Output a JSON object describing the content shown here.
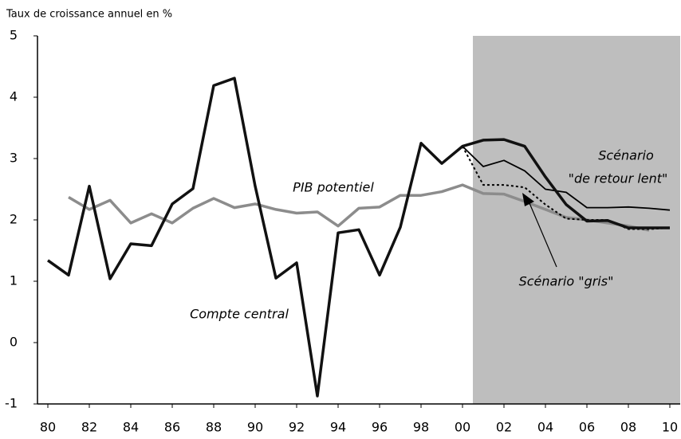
{
  "chart_data": {
    "type": "line",
    "title": "Taux de croissance annuel en %",
    "x": [
      1980,
      1981,
      1982,
      1983,
      1984,
      1985,
      1986,
      1987,
      1988,
      1989,
      1990,
      1991,
      1992,
      1993,
      1994,
      1995,
      1996,
      1997,
      1998,
      1999,
      2000,
      2001,
      2002,
      2003,
      2004,
      2005,
      2006,
      2007,
      2008,
      2009,
      2010
    ],
    "series": [
      {
        "name": "PIB potentiel",
        "color": "#8c8c8c",
        "values": [
          null,
          2.37,
          2.17,
          2.32,
          1.95,
          2.1,
          1.95,
          2.19,
          2.35,
          2.2,
          2.26,
          2.17,
          2.11,
          2.13,
          1.9,
          2.19,
          2.21,
          2.4,
          2.4,
          2.46,
          2.57,
          2.43,
          2.42,
          2.3,
          2.17,
          2.04,
          2.0,
          1.95,
          1.9,
          1.83,
          null
        ]
      },
      {
        "name": "Scénario \"gris\"",
        "color": "#000000",
        "style": "dotted",
        "values": [
          null,
          null,
          null,
          null,
          null,
          null,
          null,
          null,
          null,
          null,
          null,
          null,
          null,
          null,
          null,
          null,
          null,
          null,
          null,
          null,
          3.2,
          2.57,
          2.57,
          2.53,
          2.25,
          2.02,
          2.0,
          2.0,
          1.85,
          1.85,
          1.87
        ]
      },
      {
        "name": "Scénario \"de retour lent\"",
        "color": "#000000",
        "style": "thin",
        "values": [
          null,
          null,
          null,
          null,
          null,
          null,
          null,
          null,
          null,
          null,
          null,
          null,
          null,
          null,
          null,
          null,
          null,
          null,
          null,
          null,
          3.2,
          2.87,
          2.97,
          2.8,
          2.5,
          2.45,
          2.2,
          2.2,
          2.21,
          2.19,
          2.16
        ]
      },
      {
        "name": "Compte central",
        "color": "#111111",
        "values": [
          1.34,
          1.1,
          2.55,
          1.04,
          1.61,
          1.58,
          2.26,
          2.51,
          4.19,
          4.31,
          2.55,
          1.05,
          1.3,
          -0.87,
          1.79,
          1.84,
          1.1,
          1.88,
          3.25,
          2.92,
          3.2,
          3.3,
          3.31,
          3.2,
          2.7,
          2.25,
          1.98,
          1.99,
          1.87,
          1.87,
          1.87
        ]
      }
    ],
    "annotations": [
      "PIB potentiel",
      "Compte central",
      "Scénario",
      "\"de retour lent\"",
      "Scénario \"gris\""
    ],
    "shaded_region": [
      2000.5,
      2010.5
    ],
    "shade_color": "#bebebe",
    "xlim": [
      1979.5,
      2010.5
    ],
    "xticks": [
      {
        "value": 1980,
        "label": "80"
      },
      {
        "value": 1982,
        "label": "82"
      },
      {
        "value": 1984,
        "label": "84"
      },
      {
        "value": 1986,
        "label": "86"
      },
      {
        "value": 1988,
        "label": "88"
      },
      {
        "value": 1990,
        "label": "90"
      },
      {
        "value": 1992,
        "label": "92"
      },
      {
        "value": 1994,
        "label": "94"
      },
      {
        "value": 1996,
        "label": "96"
      },
      {
        "value": 1998,
        "label": "98"
      },
      {
        "value": 2000,
        "label": "00"
      },
      {
        "value": 2002,
        "label": "02"
      },
      {
        "value": 2004,
        "label": "04"
      },
      {
        "value": 2006,
        "label": "06"
      },
      {
        "value": 2008,
        "label": "08"
      },
      {
        "value": 2010,
        "label": "10"
      }
    ],
    "ylim": [
      -1,
      5
    ],
    "yticks": [
      -1,
      0,
      1,
      2,
      3,
      4,
      5
    ],
    "grid": false
  }
}
